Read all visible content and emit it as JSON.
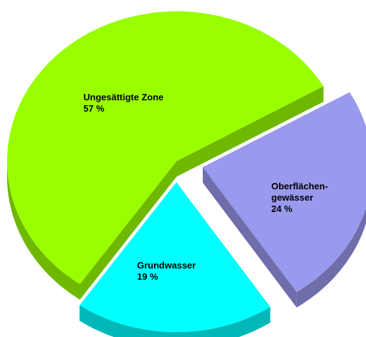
{
  "chart_data": {
    "type": "pie",
    "categories": [
      "Ungesättigte Zone",
      "Oberflächen-\ngewässer",
      "Grundwasser"
    ],
    "values": [
      57,
      24,
      19
    ],
    "value_labels": [
      "57 %",
      "24 %",
      "19 %"
    ],
    "colors": [
      "#99ff00",
      "#9999ee",
      "#00ffff"
    ]
  }
}
